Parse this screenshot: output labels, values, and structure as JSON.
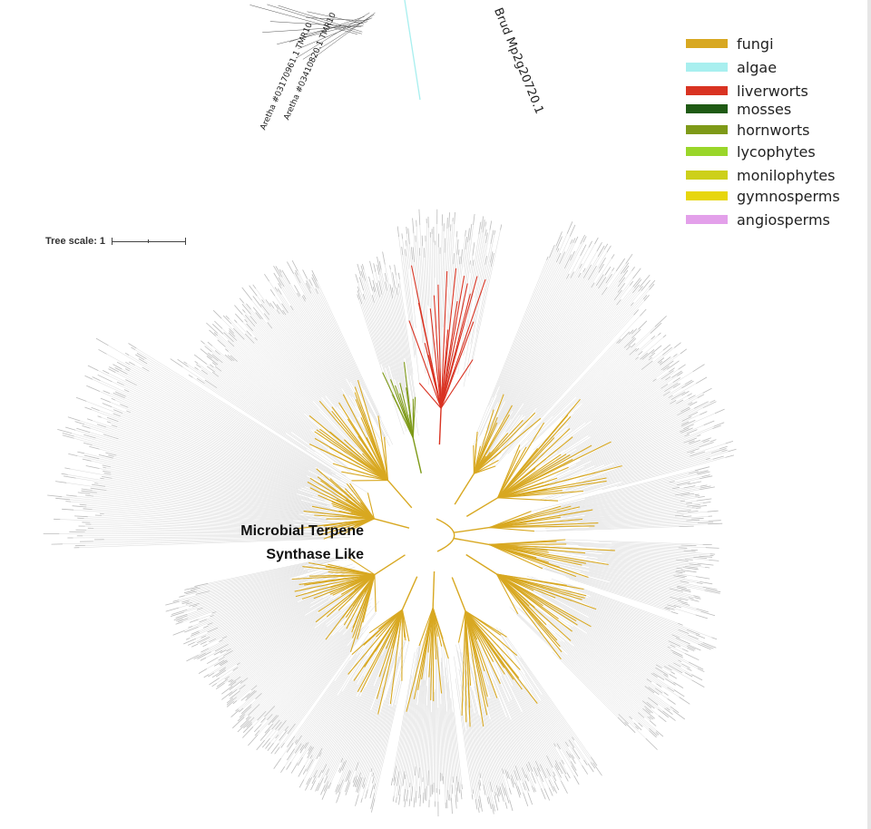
{
  "figure": {
    "clade_label_line1": "Microbial Terpene",
    "clade_label_line2": "Synthase Like",
    "tree_scale_label": "Tree scale: 1"
  },
  "legend": {
    "items": [
      {
        "label": "fungi",
        "color": "#D8A821"
      },
      {
        "label": "algae",
        "color": "#A8EFEF"
      },
      {
        "label": "liverworts",
        "color": "#D93322"
      },
      {
        "label": "mosses",
        "color": "#1F5A14"
      },
      {
        "label": "hornworts",
        "color": "#7E9A18"
      },
      {
        "label": "lycophytes",
        "color": "#9AD62A"
      },
      {
        "label": "monilophytes",
        "color": "#CDD01A"
      },
      {
        "label": "gymnosperms",
        "color": "#E7D60E"
      },
      {
        "label": "angiosperms",
        "color": "#E3A0EA"
      }
    ]
  },
  "leaf_labels": {
    "mp_label": "Mp2g20720.1",
    "mp_prefix": "Brud",
    "aretha_label_1": "Aretha #03170961.1 TMR10",
    "aretha_label_2": "Aretha #03410820.1 TMR10"
  },
  "colors": {
    "branch_grey": "#c9c9c9",
    "leaf_grey": "#bcbcbc"
  }
}
